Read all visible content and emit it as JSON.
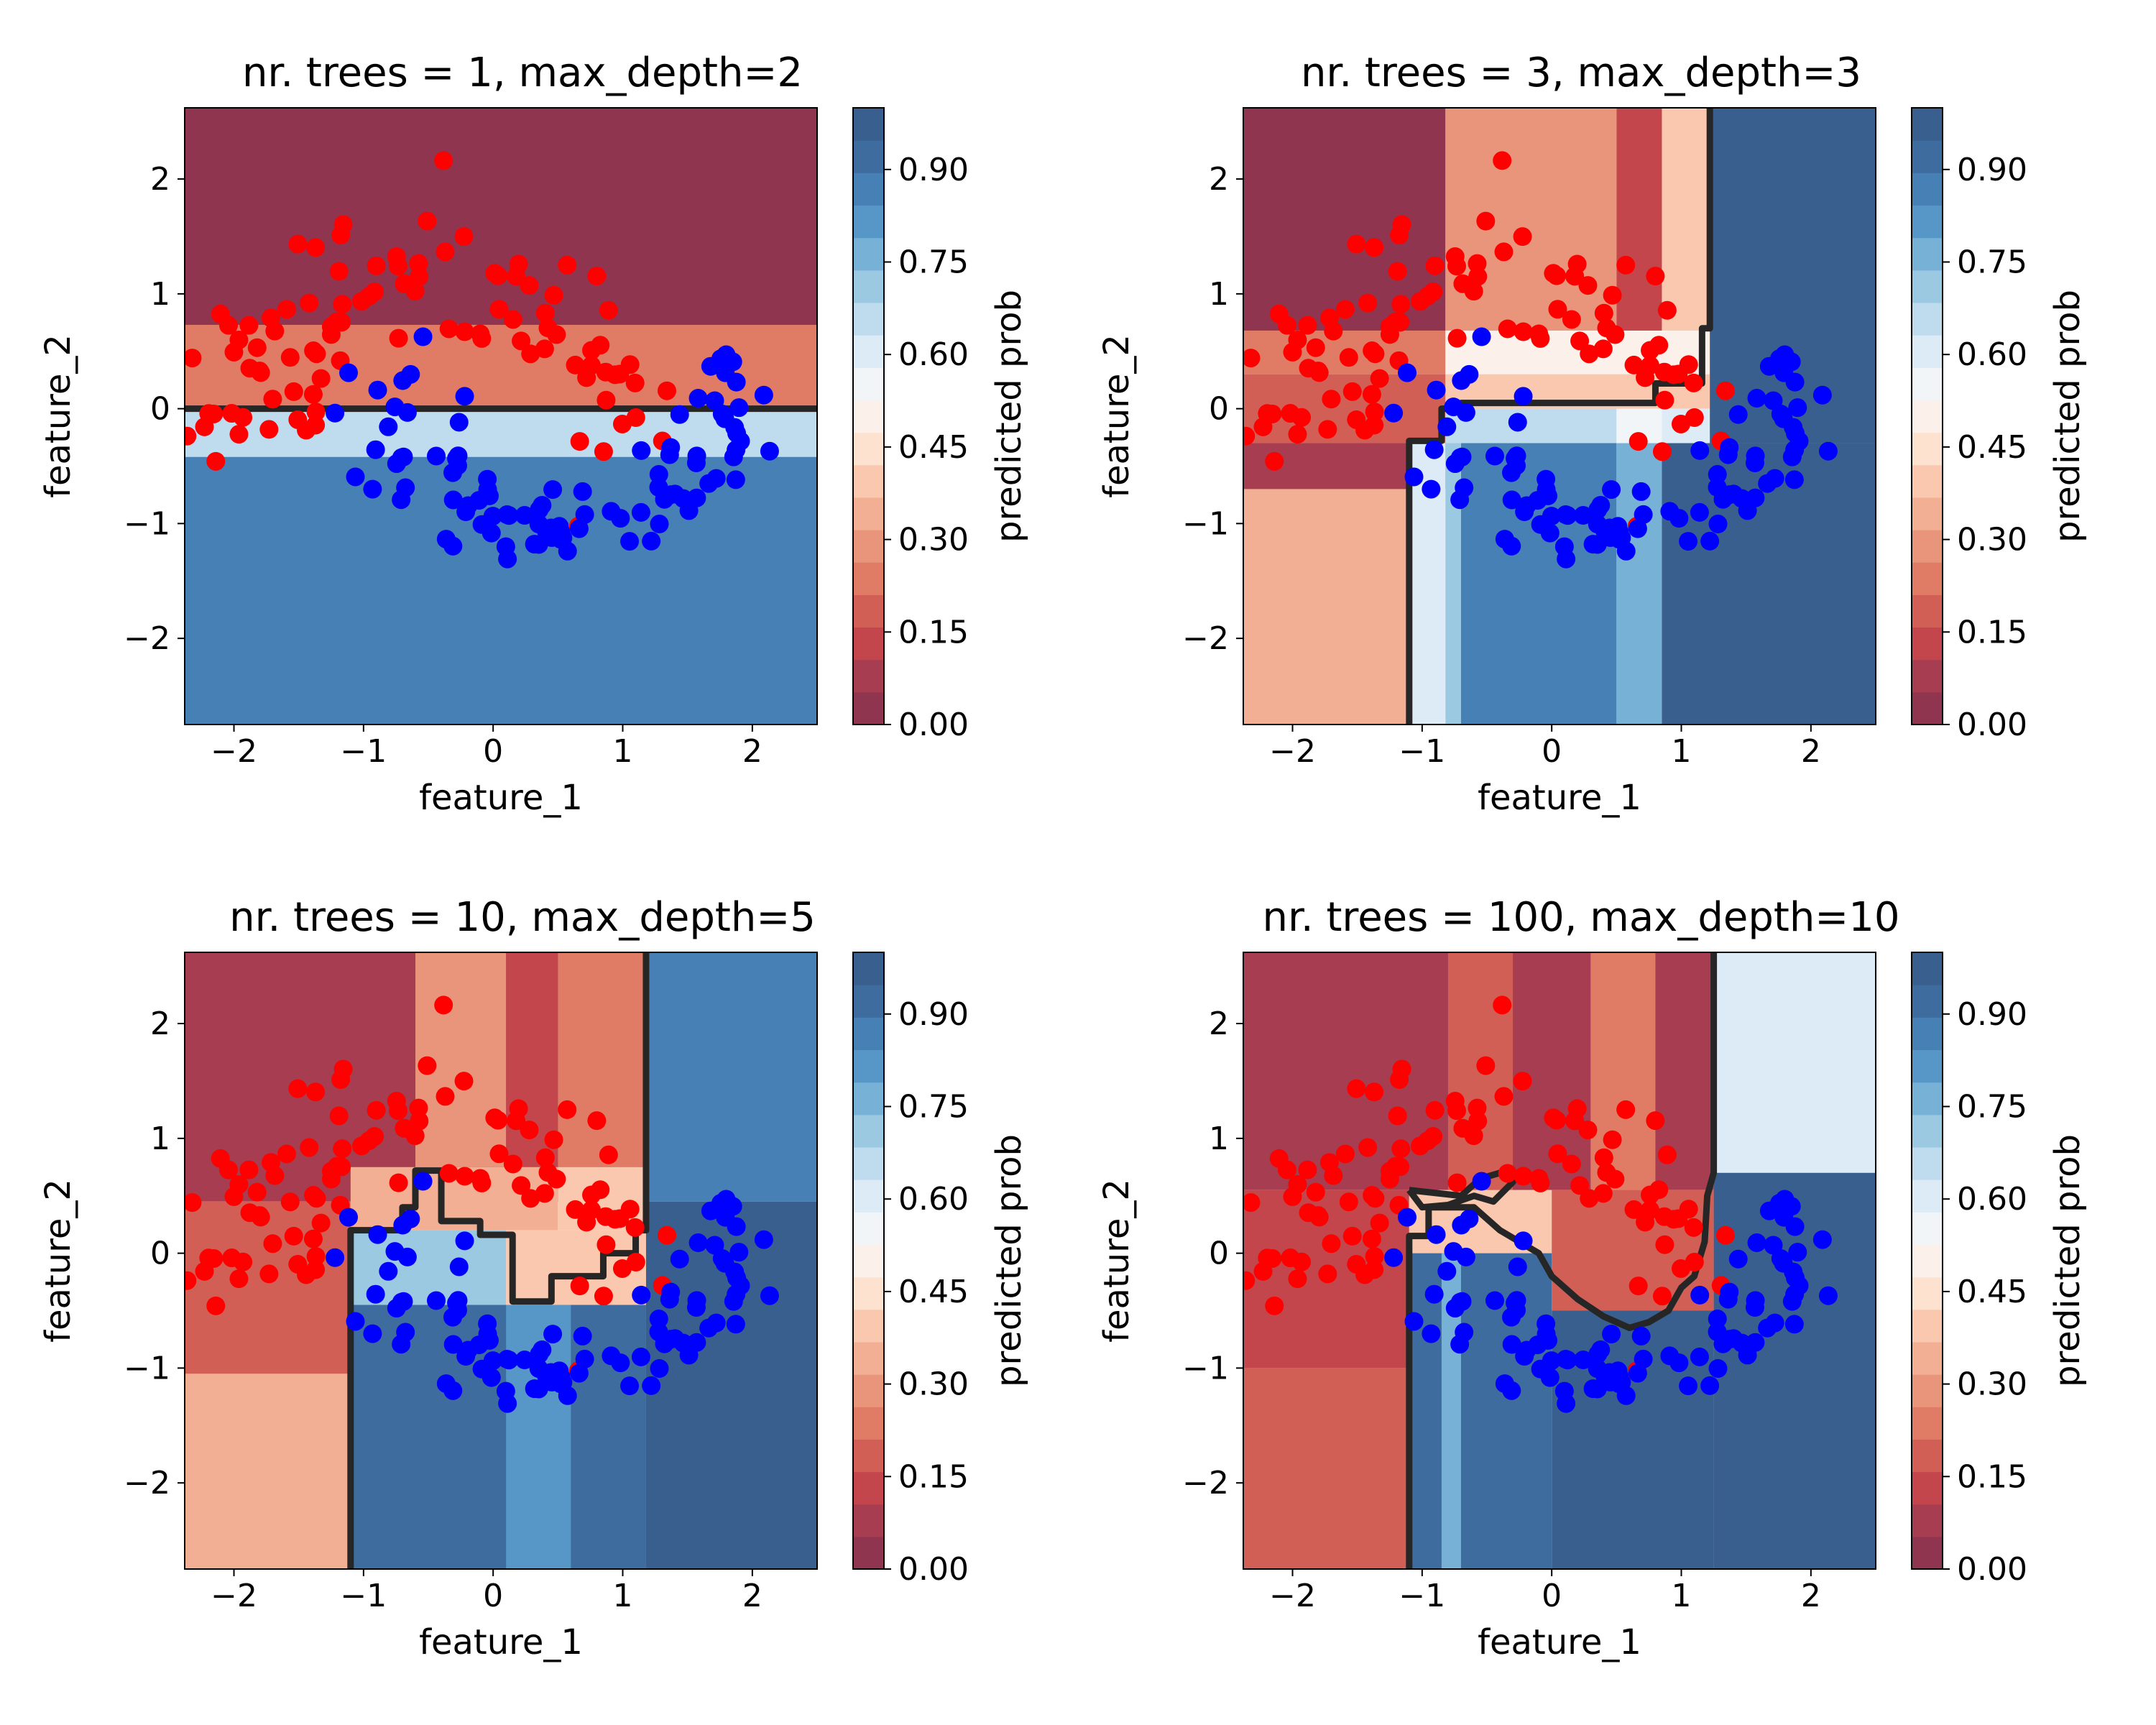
{
  "figure": {
    "colorbar_ticks": [
      "0.00",
      "0.15",
      "0.30",
      "0.45",
      "0.60",
      "0.75",
      "0.90"
    ],
    "colorbar_label": "predicted prob",
    "x_ticks": [
      "−2",
      "−1",
      "0",
      "1",
      "2"
    ],
    "y_ticks": [
      "−2",
      "−1",
      "0",
      "1",
      "2"
    ],
    "colors": {
      "class0_points": "#ff0000",
      "class1_points": "#0000ff",
      "boundary": "#262626",
      "cmap": [
        "#8f3550",
        "#a63d50",
        "#c2464c",
        "#d25f55",
        "#e07b66",
        "#e9957c",
        "#f2af94",
        "#f9c8af",
        "#fde2d0",
        "#fbf1ea",
        "#f2f5f8",
        "#dcebf5",
        "#bfdcee",
        "#9bc9e2",
        "#77b1d6",
        "#5797c7",
        "#4680b5",
        "#3f6c9e",
        "#395f8e"
      ]
    }
  },
  "chart_data": [
    {
      "type": "heatmap",
      "title": "nr. trees = 1, max_depth=2",
      "xlabel": "feature_1",
      "ylabel": "feature_2",
      "xlim": [
        -2.38,
        2.5
      ],
      "ylim": [
        -2.75,
        2.62
      ],
      "legend": "none",
      "colorbar_range": [
        0.0,
        1.0
      ],
      "regions": [
        {
          "x": [
            -2.38,
            2.5
          ],
          "y": [
            0.73,
            2.62
          ],
          "prob": 0.04
        },
        {
          "x": [
            -2.38,
            2.5
          ],
          "y": [
            0.0,
            0.73
          ],
          "prob": 0.26
        },
        {
          "x": [
            -2.38,
            2.5
          ],
          "y": [
            -0.42,
            0.0
          ],
          "prob": 0.66
        },
        {
          "x": [
            -2.38,
            2.5
          ],
          "y": [
            -2.75,
            -0.42
          ],
          "prob": 0.86
        }
      ],
      "boundary": [
        [
          -2.38,
          0.0
        ],
        [
          2.5,
          0.0
        ]
      ]
    },
    {
      "type": "heatmap",
      "title": "nr. trees = 3, max_depth=3",
      "xlabel": "feature_1",
      "ylabel": "feature_2",
      "xlim": [
        -2.38,
        2.5
      ],
      "ylim": [
        -2.75,
        2.62
      ],
      "legend": "none",
      "colorbar_range": [
        0.0,
        1.0
      ],
      "regions": [
        {
          "x": [
            -2.38,
            -0.82
          ],
          "y": [
            0.68,
            2.62
          ],
          "prob": 0.04
        },
        {
          "x": [
            -2.38,
            -0.82
          ],
          "y": [
            0.3,
            0.68
          ],
          "prob": 0.26
        },
        {
          "x": [
            -2.38,
            -0.82
          ],
          "y": [
            -0.3,
            0.3
          ],
          "prob": 0.18
        },
        {
          "x": [
            -2.38,
            -0.82
          ],
          "y": [
            -0.7,
            -0.3
          ],
          "prob": 0.1
        },
        {
          "x": [
            -2.38,
            -1.1
          ],
          "y": [
            -2.75,
            -0.7
          ],
          "prob": 0.35
        },
        {
          "x": [
            -1.1,
            -0.82
          ],
          "y": [
            -2.75,
            -0.3
          ],
          "prob": 0.6
        },
        {
          "x": [
            -0.82,
            0.5
          ],
          "y": [
            0.68,
            2.62
          ],
          "prob": 0.3
        },
        {
          "x": [
            0.5,
            0.85
          ],
          "y": [
            0.68,
            2.62
          ],
          "prob": 0.15
        },
        {
          "x": [
            0.85,
            1.22
          ],
          "y": [
            0.68,
            2.62
          ],
          "prob": 0.38
        },
        {
          "x": [
            -0.82,
            1.22
          ],
          "y": [
            0.3,
            0.68
          ],
          "prob": 0.48
        },
        {
          "x": [
            -0.82,
            1.22
          ],
          "y": [
            0.0,
            0.3
          ],
          "prob": 0.4
        },
        {
          "x": [
            -0.82,
            0.5
          ],
          "y": [
            -0.3,
            0.0
          ],
          "prob": 0.65
        },
        {
          "x": [
            0.5,
            0.85
          ],
          "y": [
            -0.3,
            0.0
          ],
          "prob": 0.55
        },
        {
          "x": [
            0.85,
            1.22
          ],
          "y": [
            -0.3,
            0.0
          ],
          "prob": 0.62
        },
        {
          "x": [
            -0.82,
            -0.7
          ],
          "y": [
            -2.75,
            -0.3
          ],
          "prob": 0.72
        },
        {
          "x": [
            -0.7,
            0.5
          ],
          "y": [
            -2.75,
            -0.3
          ],
          "prob": 0.86
        },
        {
          "x": [
            0.5,
            0.85
          ],
          "y": [
            -2.75,
            -0.3
          ],
          "prob": 0.75
        },
        {
          "x": [
            0.85,
            2.5
          ],
          "y": [
            -2.75,
            -0.3
          ],
          "prob": 0.97
        },
        {
          "x": [
            1.22,
            2.5
          ],
          "y": [
            -0.3,
            2.62
          ],
          "prob": 0.97
        }
      ],
      "boundary": [
        [
          -1.1,
          -2.75
        ],
        [
          -1.1,
          -0.28
        ],
        [
          -0.85,
          -0.28
        ],
        [
          -0.85,
          0.0
        ],
        [
          -0.7,
          0.0
        ],
        [
          -0.7,
          0.05
        ],
        [
          0.8,
          0.05
        ],
        [
          0.8,
          0.22
        ],
        [
          1.16,
          0.22
        ],
        [
          1.16,
          0.7
        ],
        [
          1.22,
          0.7
        ],
        [
          1.22,
          2.62
        ]
      ]
    },
    {
      "type": "heatmap",
      "title": "nr. trees = 10, max_depth=5",
      "xlabel": "feature_1",
      "ylabel": "feature_2",
      "xlim": [
        -2.38,
        2.5
      ],
      "ylim": [
        -2.75,
        2.62
      ],
      "legend": "none",
      "colorbar_range": [
        0.0,
        1.0
      ],
      "regions": [
        {
          "x": [
            -2.38,
            1.18
          ],
          "y": [
            0.45,
            2.62
          ],
          "prob": 0.06
        },
        {
          "x": [
            -0.6,
            0.1
          ],
          "y": [
            0.75,
            2.62
          ],
          "prob": 0.3
        },
        {
          "x": [
            0.1,
            0.5
          ],
          "y": [
            0.75,
            2.62
          ],
          "prob": 0.12
        },
        {
          "x": [
            0.5,
            1.18
          ],
          "y": [
            0.75,
            2.62
          ],
          "prob": 0.26
        },
        {
          "x": [
            -2.38,
            -1.1
          ],
          "y": [
            -1.05,
            0.45
          ],
          "prob": 0.2
        },
        {
          "x": [
            -2.38,
            -1.1
          ],
          "y": [
            -2.75,
            -1.05
          ],
          "prob": 0.33
        },
        {
          "x": [
            -1.1,
            0.5
          ],
          "y": [
            0.2,
            0.75
          ],
          "prob": 0.35
        },
        {
          "x": [
            0.5,
            1.18
          ],
          "y": [
            0.2,
            0.75
          ],
          "prob": 0.42
        },
        {
          "x": [
            -1.1,
            0.1
          ],
          "y": [
            -0.45,
            0.2
          ],
          "prob": 0.72
        },
        {
          "x": [
            0.1,
            1.18
          ],
          "y": [
            -0.45,
            0.2
          ],
          "prob": 0.4
        },
        {
          "x": [
            -1.1,
            1.18
          ],
          "y": [
            -2.75,
            -0.45
          ],
          "prob": 0.9
        },
        {
          "x": [
            0.1,
            0.6
          ],
          "y": [
            -2.75,
            -0.45
          ],
          "prob": 0.8
        },
        {
          "x": [
            1.18,
            2.5
          ],
          "y": [
            0.45,
            2.62
          ],
          "prob": 0.85
        },
        {
          "x": [
            1.18,
            2.5
          ],
          "y": [
            -2.75,
            0.45
          ],
          "prob": 0.97
        }
      ],
      "boundary": [
        [
          -1.1,
          -2.75
        ],
        [
          -1.1,
          0.2
        ],
        [
          -0.7,
          0.2
        ],
        [
          -0.7,
          0.4
        ],
        [
          -0.6,
          0.4
        ],
        [
          -0.6,
          0.72
        ],
        [
          -0.4,
          0.72
        ],
        [
          -0.4,
          0.28
        ],
        [
          -0.1,
          0.28
        ],
        [
          -0.1,
          0.16
        ],
        [
          0.15,
          0.16
        ],
        [
          0.15,
          -0.42
        ],
        [
          0.45,
          -0.42
        ],
        [
          0.45,
          -0.2
        ],
        [
          0.85,
          -0.2
        ],
        [
          0.85,
          0.0
        ],
        [
          1.1,
          0.0
        ],
        [
          1.1,
          0.2
        ],
        [
          1.18,
          0.2
        ],
        [
          1.18,
          2.62
        ]
      ]
    },
    {
      "type": "heatmap",
      "title": "nr. trees = 100, max_depth=10",
      "xlabel": "feature_1",
      "ylabel": "feature_2",
      "xlim": [
        -2.38,
        2.5
      ],
      "ylim": [
        -2.75,
        2.62
      ],
      "legend": "none",
      "colorbar_range": [
        0.0,
        1.0
      ],
      "regions": [
        {
          "x": [
            -2.38,
            1.25
          ],
          "y": [
            0.55,
            2.62
          ],
          "prob": 0.06
        },
        {
          "x": [
            -0.8,
            -0.3
          ],
          "y": [
            0.55,
            2.62
          ],
          "prob": 0.2
        },
        {
          "x": [
            0.3,
            0.8
          ],
          "y": [
            0.55,
            2.62
          ],
          "prob": 0.22
        },
        {
          "x": [
            -2.38,
            -1.1
          ],
          "y": [
            -1.0,
            0.55
          ],
          "prob": 0.12
        },
        {
          "x": [
            -2.38,
            -1.1
          ],
          "y": [
            -2.75,
            -1.0
          ],
          "prob": 0.18
        },
        {
          "x": [
            -1.1,
            0.0
          ],
          "y": [
            0.0,
            0.55
          ],
          "prob": 0.4
        },
        {
          "x": [
            0.0,
            1.25
          ],
          "y": [
            -0.5,
            0.55
          ],
          "prob": 0.18
        },
        {
          "x": [
            -1.1,
            0.0
          ],
          "y": [
            -2.75,
            0.0
          ],
          "prob": 0.92
        },
        {
          "x": [
            -0.85,
            -0.7
          ],
          "y": [
            -2.75,
            0.0
          ],
          "prob": 0.78
        },
        {
          "x": [
            0.0,
            1.25
          ],
          "y": [
            -2.75,
            -0.5
          ],
          "prob": 0.95
        },
        {
          "x": [
            1.25,
            2.5
          ],
          "y": [
            0.7,
            2.62
          ],
          "prob": 0.62
        },
        {
          "x": [
            1.25,
            2.5
          ],
          "y": [
            -2.75,
            0.7
          ],
          "prob": 0.95
        }
      ],
      "boundary": [
        [
          -1.1,
          -2.75
        ],
        [
          -1.1,
          0.15
        ],
        [
          -0.95,
          0.15
        ],
        [
          -0.95,
          0.4
        ],
        [
          -0.6,
          0.4
        ],
        [
          -0.4,
          0.2
        ],
        [
          -0.1,
          0.0
        ],
        [
          0.0,
          -0.2
        ],
        [
          0.2,
          -0.4
        ],
        [
          0.4,
          -0.55
        ],
        [
          0.6,
          -0.65
        ],
        [
          0.75,
          -0.6
        ],
        [
          0.9,
          -0.5
        ],
        [
          1.0,
          -0.3
        ],
        [
          1.1,
          -0.2
        ],
        [
          1.18,
          0.1
        ],
        [
          1.2,
          0.5
        ],
        [
          1.25,
          0.7
        ],
        [
          1.25,
          2.62
        ]
      ],
      "boundary_loop": [
        [
          -1.1,
          0.55
        ],
        [
          -0.7,
          0.5
        ],
        [
          -0.55,
          0.65
        ],
        [
          -0.4,
          0.7
        ],
        [
          -0.3,
          0.62
        ],
        [
          -0.45,
          0.45
        ],
        [
          -0.6,
          0.5
        ],
        [
          -0.8,
          0.42
        ],
        [
          -1.0,
          0.4
        ],
        [
          -1.1,
          0.55
        ]
      ]
    }
  ]
}
